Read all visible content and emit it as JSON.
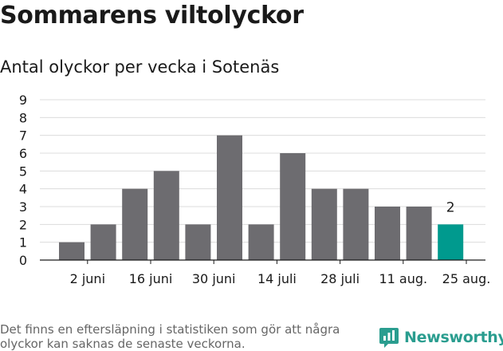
{
  "title": "Sommarens viltolyckor",
  "subtitle": "Antal olyckor per vecka i Sotenäs",
  "footnote": "Det finns en eftersläpning i statistiken som gör att några olyckor kan saknas de senaste veckorna.",
  "brand": "Newsworthy",
  "colors": {
    "bar": "#6d6c70",
    "highlight": "#009a8e",
    "grid": "#dcdcdc",
    "brand": "#2a9d8f"
  },
  "chart_data": {
    "type": "bar",
    "values": [
      1,
      2,
      4,
      5,
      2,
      7,
      2,
      6,
      4,
      4,
      3,
      3,
      2
    ],
    "highlight_index": 12,
    "data_labels": [
      {
        "index": 12,
        "text": "2"
      }
    ],
    "yticks": [
      "0",
      "1",
      "2",
      "3",
      "4",
      "5",
      "6",
      "7",
      "8",
      "9"
    ],
    "ylim": [
      0,
      9
    ],
    "xticks": [
      {
        "after_bar": 0,
        "label": "2 juni"
      },
      {
        "after_bar": 2,
        "label": "16 juni"
      },
      {
        "after_bar": 4,
        "label": "30 juni"
      },
      {
        "after_bar": 6,
        "label": "14 juli"
      },
      {
        "after_bar": 8,
        "label": "28 juli"
      },
      {
        "after_bar": 10,
        "label": "11 aug."
      },
      {
        "after_bar": 12,
        "label": "25 aug."
      }
    ],
    "grid": true
  }
}
